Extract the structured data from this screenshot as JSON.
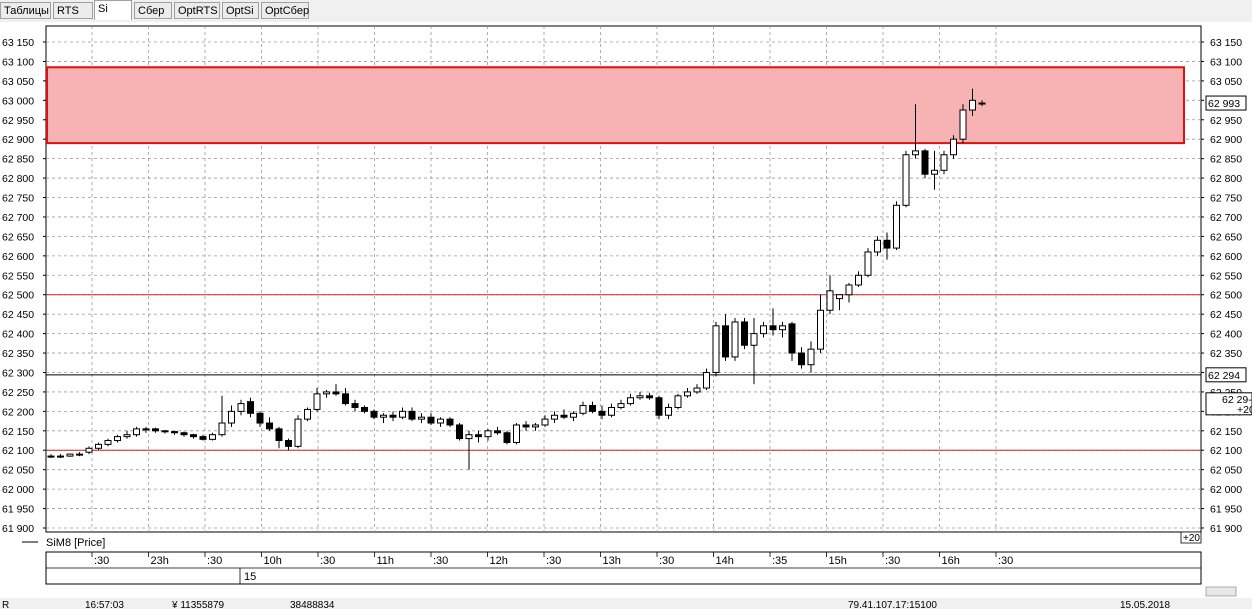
{
  "tabs": [
    {
      "label": "Таблицы",
      "active": false
    },
    {
      "label": "RTS",
      "active": false
    },
    {
      "label": "Si",
      "active": true
    },
    {
      "label": "Сбер",
      "active": false
    },
    {
      "label": "OptRTS",
      "active": false
    },
    {
      "label": "OptSi",
      "active": false
    },
    {
      "label": "OptСбер",
      "active": false
    }
  ],
  "legend": {
    "series_label": "SiM8 [Price]"
  },
  "right_panel": {
    "corner_label": "+20",
    "bottom_label": "+20"
  },
  "status_bar": {
    "left": "R",
    "value1": "16:57:03",
    "value2": "¥ 11355879",
    "value3": "38488834",
    "ip": "79.41.107.17:15100",
    "date": "15.05.2018"
  },
  "colors": {
    "up": "#ffffff",
    "down": "#000000",
    "zone_fill": "#f7b3b3",
    "zone_border": "#e01010",
    "level_line": "#d02020",
    "price_line": "#000000"
  },
  "chart_data": {
    "type": "candlestick",
    "instrument": "SiM8",
    "y_axis": {
      "min": 61900,
      "max": 63150,
      "step": 50,
      "tick_labels": [
        "61 900",
        "61 950",
        "62 000",
        "62 050",
        "62 100",
        "62 150",
        "62 200",
        "62 250",
        "62 300",
        "62 350",
        "62 400",
        "62 450",
        "62 500",
        "62 550",
        "62 600",
        "62 650",
        "62 700",
        "62 750",
        "62 800",
        "62 850",
        "62 900",
        "62 950",
        "63 000",
        "63 050",
        "63 100",
        "63 150"
      ]
    },
    "x_axis_labels": [
      ":30",
      "23h",
      ":30",
      "10h",
      ":30",
      "11h",
      ":30",
      "12h",
      ":30",
      "13h",
      ":30",
      "14h",
      ":35",
      "15h",
      ":30",
      "16h",
      ":30"
    ],
    "date_label": "15",
    "grid": true,
    "price_badges": [
      {
        "value": 62993,
        "label": "62 993"
      },
      {
        "value": 62294,
        "label": "62 294"
      }
    ],
    "third_badge": {
      "label": "62 29-"
    },
    "zone": {
      "from": 62890,
      "to": 63085
    },
    "levels": [
      62500,
      62100
    ],
    "price_line": 62294,
    "candles": [
      [
        62085,
        62090,
        62080,
        62085
      ],
      [
        62085,
        62090,
        62080,
        62085
      ],
      [
        62085,
        62092,
        62083,
        62090
      ],
      [
        62090,
        62095,
        62085,
        62090
      ],
      [
        62095,
        62110,
        62090,
        62105
      ],
      [
        62105,
        62120,
        62100,
        62115
      ],
      [
        62115,
        62130,
        62110,
        62125
      ],
      [
        62125,
        62140,
        62120,
        62135
      ],
      [
        62135,
        62150,
        62130,
        62140
      ],
      [
        62140,
        62160,
        62135,
        62155
      ],
      [
        62155,
        62160,
        62145,
        62155
      ],
      [
        62155,
        62158,
        62145,
        62150
      ],
      [
        62150,
        62152,
        62143,
        62148
      ],
      [
        62148,
        62150,
        62140,
        62145
      ],
      [
        62145,
        62148,
        62135,
        62140
      ],
      [
        62140,
        62142,
        62130,
        62135
      ],
      [
        62135,
        62140,
        62125,
        62128
      ],
      [
        62128,
        62145,
        62125,
        62140
      ],
      [
        62140,
        62240,
        62135,
        62170
      ],
      [
        62170,
        62215,
        62160,
        62200
      ],
      [
        62200,
        62230,
        62190,
        62220
      ],
      [
        62225,
        62235,
        62185,
        62195
      ],
      [
        62195,
        62200,
        62160,
        62170
      ],
      [
        62170,
        62185,
        62150,
        62155
      ],
      [
        62155,
        62160,
        62105,
        62125
      ],
      [
        62125,
        62130,
        62100,
        62110
      ],
      [
        62110,
        62190,
        62105,
        62180
      ],
      [
        62180,
        62210,
        62175,
        62205
      ],
      [
        62205,
        62260,
        62200,
        62245
      ],
      [
        62245,
        62255,
        62235,
        62250
      ],
      [
        62250,
        62270,
        62240,
        62245
      ],
      [
        62245,
        62260,
        62215,
        62220
      ],
      [
        62220,
        62230,
        62200,
        62210
      ],
      [
        62210,
        62215,
        62195,
        62200
      ],
      [
        62200,
        62205,
        62180,
        62185
      ],
      [
        62185,
        62195,
        62170,
        62190
      ],
      [
        62190,
        62200,
        62175,
        62185
      ],
      [
        62185,
        62210,
        62180,
        62200
      ],
      [
        62200,
        62210,
        62175,
        62180
      ],
      [
        62180,
        62195,
        62170,
        62185
      ],
      [
        62185,
        62195,
        62165,
        62170
      ],
      [
        62170,
        62185,
        62160,
        62180
      ],
      [
        62180,
        62185,
        62160,
        62165
      ],
      [
        62165,
        62170,
        62125,
        62130
      ],
      [
        62130,
        62150,
        62050,
        62140
      ],
      [
        62140,
        62150,
        62120,
        62135
      ],
      [
        62135,
        62155,
        62125,
        62150
      ],
      [
        62150,
        62160,
        62140,
        62145
      ],
      [
        62145,
        62150,
        62115,
        62120
      ],
      [
        62120,
        62170,
        62115,
        62165
      ],
      [
        62165,
        62175,
        62150,
        62160
      ],
      [
        62160,
        62170,
        62150,
        62165
      ],
      [
        62165,
        62190,
        62160,
        62180
      ],
      [
        62180,
        62200,
        62170,
        62190
      ],
      [
        62190,
        62205,
        62180,
        62185
      ],
      [
        62185,
        62200,
        62175,
        62195
      ],
      [
        62195,
        62225,
        62190,
        62215
      ],
      [
        62215,
        62225,
        62195,
        62200
      ],
      [
        62200,
        62215,
        62180,
        62190
      ],
      [
        62190,
        62220,
        62185,
        62210
      ],
      [
        62210,
        62230,
        62205,
        62220
      ],
      [
        62220,
        62245,
        62215,
        62235
      ],
      [
        62235,
        62250,
        62230,
        62240
      ],
      [
        62240,
        62248,
        62230,
        62235
      ],
      [
        62235,
        62240,
        62180,
        62190
      ],
      [
        62190,
        62220,
        62180,
        62210
      ],
      [
        62210,
        62245,
        62205,
        62240
      ],
      [
        62240,
        62260,
        62235,
        62250
      ],
      [
        62250,
        62270,
        62245,
        62260
      ],
      [
        62260,
        62310,
        62255,
        62300
      ],
      [
        62300,
        62430,
        62290,
        62420
      ],
      [
        62420,
        62450,
        62330,
        62340
      ],
      [
        62340,
        62440,
        62330,
        62430
      ],
      [
        62430,
        62440,
        62360,
        62370
      ],
      [
        62370,
        62440,
        62270,
        62400
      ],
      [
        62400,
        62430,
        62390,
        62420
      ],
      [
        62420,
        62465,
        62395,
        62410
      ],
      [
        62410,
        62430,
        62390,
        62420
      ],
      [
        62425,
        62430,
        62330,
        62350
      ],
      [
        62350,
        62365,
        62310,
        62320
      ],
      [
        62320,
        62380,
        62300,
        62360
      ],
      [
        62360,
        62500,
        62350,
        62460
      ],
      [
        62460,
        62550,
        62450,
        62510
      ],
      [
        62490,
        62500,
        62460,
        62500
      ],
      [
        62500,
        62530,
        62480,
        62525
      ],
      [
        62525,
        62560,
        62520,
        62550
      ],
      [
        62550,
        62620,
        62545,
        62610
      ],
      [
        62610,
        62650,
        62600,
        62640
      ],
      [
        62640,
        62660,
        62590,
        62620
      ],
      [
        62620,
        62740,
        62615,
        62730
      ],
      [
        62730,
        62870,
        62725,
        62860
      ],
      [
        62860,
        62990,
        62850,
        62870
      ],
      [
        62870,
        62875,
        62800,
        62810
      ],
      [
        62810,
        62870,
        62770,
        62820
      ],
      [
        62820,
        62870,
        62810,
        62860
      ],
      [
        62860,
        62910,
        62850,
        62900
      ],
      [
        62900,
        62990,
        62890,
        62975
      ],
      [
        62975,
        63030,
        62960,
        63000
      ],
      [
        62993,
        63000,
        62985,
        62993
      ]
    ]
  }
}
